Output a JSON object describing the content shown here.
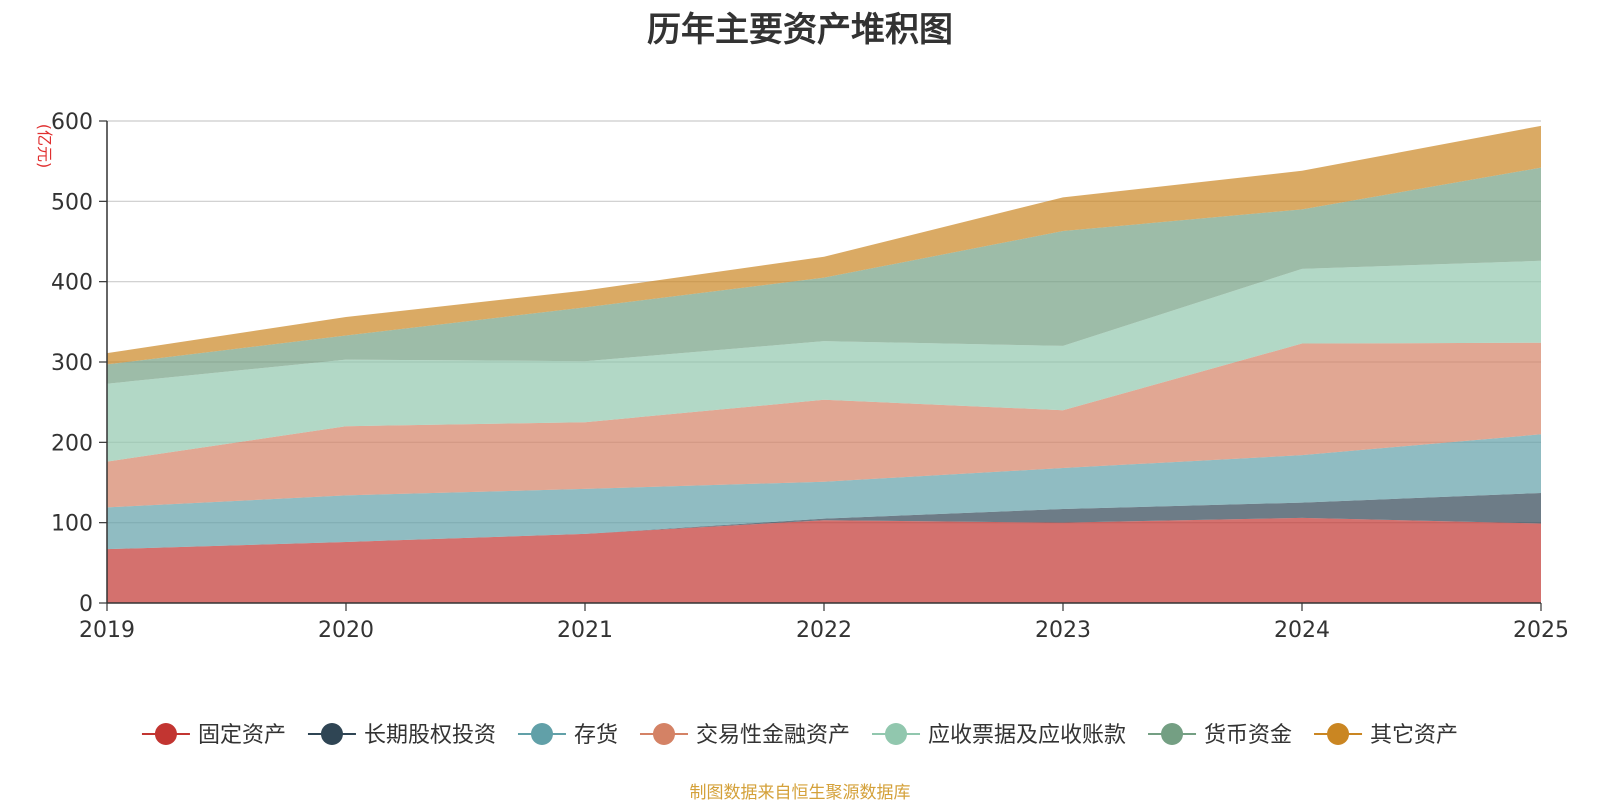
{
  "chart_data": {
    "type": "area",
    "stacked": true,
    "title": "历年主要资产堆积图",
    "ylabel": "(亿元)",
    "x": [
      "2019",
      "2020",
      "2021",
      "2022",
      "2023",
      "2024",
      "2025"
    ],
    "ylim": [
      0,
      600
    ],
    "yticks": [
      0,
      100,
      200,
      300,
      400,
      500,
      600
    ],
    "grid": true,
    "legend_position": "bottom",
    "series": [
      {
        "name": "固定资产",
        "color": "#c23531",
        "values": [
          67,
          76,
          86,
          103,
          100,
          106,
          99
        ]
      },
      {
        "name": "长期股权投资",
        "color": "#2f4554",
        "values": [
          0,
          0,
          0,
          2,
          17,
          19,
          38
        ]
      },
      {
        "name": "存货",
        "color": "#61a0a8",
        "values": [
          52,
          58,
          56,
          46,
          51,
          59,
          73
        ]
      },
      {
        "name": "交易性金融资产",
        "color": "#d48265",
        "values": [
          57,
          86,
          83,
          102,
          72,
          139,
          114
        ]
      },
      {
        "name": "应收票据及应收账款",
        "color": "#91c7ae",
        "values": [
          97,
          83,
          76,
          73,
          80,
          93,
          102
        ]
      },
      {
        "name": "货币资金",
        "color": "#749f83",
        "values": [
          24,
          30,
          67,
          79,
          143,
          74,
          116
        ]
      },
      {
        "name": "其它资产",
        "color": "#ca8622",
        "values": [
          14,
          23,
          21,
          26,
          42,
          48,
          52
        ]
      }
    ]
  },
  "footer": {
    "source": "制图数据来自恒生聚源数据库"
  }
}
